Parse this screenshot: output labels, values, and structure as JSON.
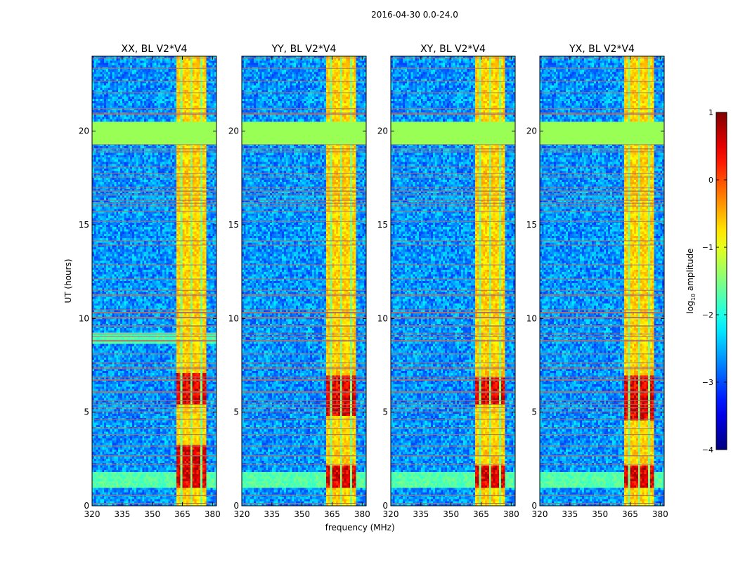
{
  "suptitle": "2016-04-30 0.0-24.0",
  "colorbar": {
    "label_base": "log",
    "label_sub": "10",
    "label_rest": " amplitude",
    "ticks": [
      1,
      0,
      -1,
      -2,
      -3,
      -4
    ],
    "range": [
      -4,
      1
    ],
    "colormap": "jet"
  },
  "colors": {
    "background": "#ffffff",
    "masked": "#99ff55",
    "flag_line": "#b0706a"
  },
  "chart_data": [
    {
      "type": "heatmap",
      "title": "XX, BL V2*V4",
      "xlabel": "",
      "ylabel": "UT (hours)",
      "xlim": [
        320,
        382
      ],
      "ylim": [
        0,
        24
      ],
      "xticks": [
        320,
        335,
        350,
        365,
        380
      ],
      "yticks": [
        0,
        5,
        10,
        15,
        20
      ],
      "rfi_band_mhz": [
        362,
        377
      ],
      "strong_hours": [
        [
          1.0,
          3.2
        ],
        [
          5.4,
          7.1
        ]
      ],
      "masked_hours": [
        19.3,
        20.5
      ]
    },
    {
      "type": "heatmap",
      "title": "YY, BL V2*V4",
      "xlabel": "frequency (MHz)",
      "ylabel": "",
      "xlim": [
        320,
        382
      ],
      "ylim": [
        0,
        24
      ],
      "xticks": [
        320,
        335,
        350,
        365,
        380
      ],
      "yticks": [
        0,
        5,
        10,
        15,
        20
      ],
      "rfi_band_mhz": [
        362,
        377
      ],
      "strong_hours": [
        [
          1.0,
          2.2
        ],
        [
          4.8,
          7.0
        ]
      ],
      "masked_hours": [
        19.3,
        20.5
      ]
    },
    {
      "type": "heatmap",
      "title": "XY, BL V2*V4",
      "xlabel": "",
      "ylabel": "",
      "xlim": [
        320,
        382
      ],
      "ylim": [
        0,
        24
      ],
      "xticks": [
        320,
        335,
        350,
        365,
        380
      ],
      "yticks": [
        0,
        5,
        10,
        15,
        20
      ],
      "rfi_band_mhz": [
        362,
        377
      ],
      "strong_hours": [
        [
          1.0,
          2.2
        ],
        [
          5.4,
          6.8
        ]
      ],
      "masked_hours": [
        19.3,
        20.5
      ]
    },
    {
      "type": "heatmap",
      "title": "YX, BL V2*V4",
      "xlabel": "",
      "ylabel": "",
      "xlim": [
        320,
        382
      ],
      "ylim": [
        0,
        24
      ],
      "xticks": [
        320,
        335,
        350,
        365,
        380
      ],
      "yticks": [
        0,
        5,
        10,
        15,
        20
      ],
      "rfi_band_mhz": [
        362,
        377
      ],
      "strong_hours": [
        [
          1.0,
          2.2
        ],
        [
          4.6,
          7.0
        ]
      ],
      "masked_hours": [
        19.3,
        20.5
      ]
    }
  ]
}
